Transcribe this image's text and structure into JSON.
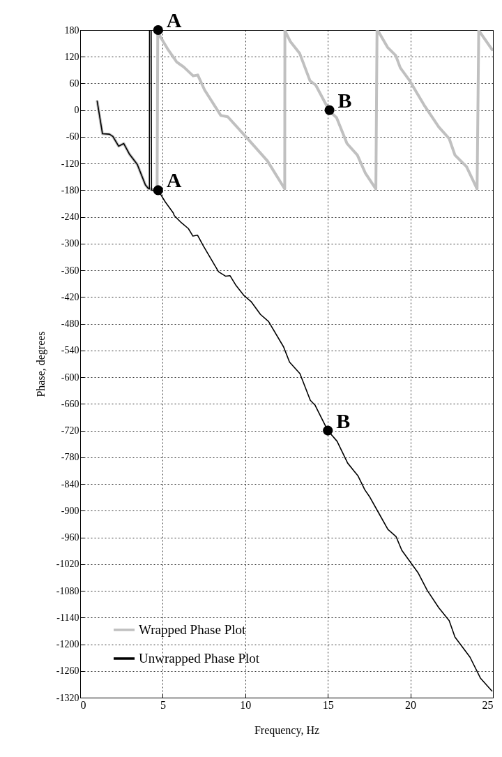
{
  "chart_data": {
    "type": "line",
    "xlabel": "Frequency, Hz",
    "ylabel": "Phase, degrees",
    "xlim": [
      0,
      25
    ],
    "xticks": [
      0,
      5,
      10,
      15,
      20,
      25
    ],
    "ylim": [
      -1320,
      180
    ],
    "yticks": [
      180,
      120,
      60,
      0,
      -60,
      -120,
      -180,
      -240,
      -300,
      -360,
      -420,
      -480,
      -540,
      -600,
      -660,
      -720,
      -780,
      -840,
      -900,
      -960,
      -1020,
      -1080,
      -1140,
      -1200,
      -1260,
      -1320
    ],
    "grid": true,
    "legend": "bottom left",
    "line_style": "solid",
    "marker": "none",
    "series": [
      {
        "name": "Wrapped Phase Plot",
        "color": "#c0c0c0",
        "x": [
          1.03,
          1.35,
          1.77,
          1.98,
          2.33,
          2.64,
          2.97,
          3.46,
          3.95,
          4.13,
          4.66,
          4.7,
          4.87,
          5.29,
          5.85,
          6.27,
          6.84,
          7.12,
          7.54,
          8.52,
          8.94,
          10.21,
          11.34,
          12.39,
          12.4,
          12.45,
          12.73,
          13.29,
          13.92,
          14.27,
          15.1,
          15.53,
          16.16,
          16.79,
          17.28,
          17.91,
          17.98,
          18.06,
          18.62,
          19.11,
          19.39,
          19.96,
          20.87,
          21.72,
          22.35,
          22.7,
          23.4,
          24.04,
          24.14,
          24.18,
          24.95
        ],
        "values": [
          20,
          -53,
          -54,
          -59,
          -81,
          -75,
          -98,
          -122,
          -168,
          -176,
          -180,
          180,
          164,
          138,
          108,
          97,
          77,
          79,
          45,
          -12,
          -15,
          -67,
          -114,
          -177,
          180,
          175,
          154,
          128,
          66,
          56,
          -2,
          -17,
          -75,
          -101,
          -142,
          -177,
          180,
          177,
          141,
          123,
          95,
          66,
          9,
          -38,
          -64,
          -101,
          -127,
          -177,
          180,
          177,
          136
        ]
      },
      {
        "name": "Unwrapped Phase Plot",
        "color": "#000000",
        "x": [
          1.03,
          1.35,
          1.77,
          1.98,
          2.33,
          2.64,
          2.97,
          3.46,
          3.95,
          4.13,
          4.19,
          4.2,
          4.3,
          4.32,
          4.72,
          5.15,
          5.64,
          5.7,
          6.13,
          6.55,
          6.83,
          7.11,
          7.46,
          8.38,
          8.8,
          9.08,
          9.44,
          9.93,
          10.35,
          10.92,
          11.41,
          12.32,
          12.68,
          13.31,
          13.94,
          14.23,
          15.0,
          15.56,
          16.2,
          16.83,
          17.24,
          17.52,
          18.08,
          18.64,
          19.13,
          19.48,
          20.46,
          21.02,
          21.72,
          22.35,
          22.7,
          23.61,
          24.24,
          24.94
        ],
        "values": [
          20,
          -53,
          -54,
          -59,
          -81,
          -75,
          -98,
          -122,
          -168,
          -176,
          -177,
          180,
          180,
          -180,
          -180,
          -206,
          -231,
          -237,
          -253,
          -266,
          -283,
          -281,
          -305,
          -363,
          -373,
          -372,
          -394,
          -417,
          -430,
          -459,
          -475,
          -532,
          -566,
          -592,
          -652,
          -663,
          -720,
          -744,
          -793,
          -822,
          -853,
          -868,
          -905,
          -942,
          -958,
          -989,
          -1039,
          -1079,
          -1118,
          -1147,
          -1184,
          -1229,
          -1276,
          -1305
        ]
      }
    ],
    "annotations": [
      {
        "text": "A",
        "x": 4.72,
        "y": 180
      },
      {
        "text": "A",
        "x": 4.72,
        "y": -180
      },
      {
        "text": "B",
        "x": 15.1,
        "y": 0
      },
      {
        "text": "B",
        "x": 15.0,
        "y": -720
      }
    ]
  }
}
